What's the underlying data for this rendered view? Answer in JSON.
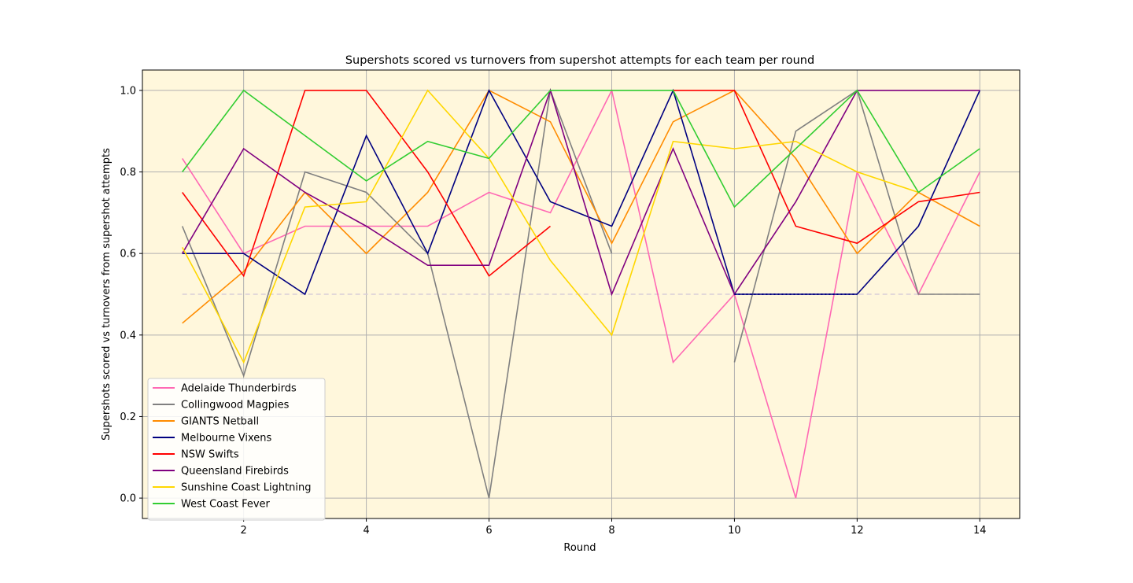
{
  "chart_data": {
    "type": "line",
    "title": "Supershots scored vs turnovers from supershot attempts for each team per round",
    "xlabel": "Round",
    "ylabel": "Supershots scored vs turnovers from supershot attempts",
    "xlim": [
      0.35,
      14.65
    ],
    "ylim": [
      -0.05,
      1.05
    ],
    "xticks": [
      2,
      4,
      6,
      8,
      10,
      12,
      14
    ],
    "yticks": [
      0.0,
      0.2,
      0.4,
      0.6,
      0.8,
      1.0
    ],
    "xtick_labels": [
      "2",
      "4",
      "6",
      "8",
      "10",
      "12",
      "14"
    ],
    "ytick_labels": [
      "0.0",
      "0.2",
      "0.4",
      "0.6",
      "0.8",
      "1.0"
    ],
    "grid": true,
    "background": "#fff7dc",
    "legend_position": "lower-left",
    "reference_line": {
      "y": 0.5,
      "x_range": [
        1,
        14
      ],
      "color": "#d8cdd8",
      "style": "dashed"
    },
    "series": [
      {
        "name": "Adelaide Thunderbirds",
        "color": "#ff69b4",
        "x": [
          1,
          2,
          3,
          4,
          5,
          6,
          7,
          8,
          9,
          10,
          11,
          12,
          13,
          14
        ],
        "y": [
          0.833,
          0.6,
          0.667,
          0.667,
          0.667,
          0.75,
          0.7,
          1.0,
          0.333,
          0.5,
          0.0,
          0.8,
          0.5,
          0.8
        ]
      },
      {
        "name": "Collingwood Magpies",
        "color": "#808080",
        "x": [
          1,
          2,
          3,
          4,
          5,
          6,
          7,
          8,
          null,
          10,
          11,
          12,
          13,
          14
        ],
        "y": [
          0.667,
          0.3,
          0.8,
          0.75,
          0.6,
          0.0,
          1.0,
          0.6,
          null,
          0.333,
          0.9,
          1.0,
          0.5,
          0.5
        ]
      },
      {
        "name": "GIANTS Netball",
        "color": "#ff8c00",
        "x": [
          1,
          2,
          3,
          4,
          5,
          6,
          7,
          8,
          9,
          10,
          11,
          12,
          13,
          14
        ],
        "y": [
          0.429,
          0.556,
          0.75,
          0.6,
          0.75,
          1.0,
          0.923,
          0.625,
          0.923,
          1.0,
          0.833,
          0.6,
          0.75,
          0.667
        ]
      },
      {
        "name": "Melbourne Vixens",
        "color": "#000080",
        "x": [
          1,
          2,
          3,
          4,
          5,
          6,
          7,
          8,
          9,
          10,
          11,
          12,
          13,
          14
        ],
        "y": [
          0.6,
          0.6,
          0.5,
          0.889,
          0.6,
          1.0,
          0.727,
          0.667,
          1.0,
          0.5,
          0.5,
          0.5,
          0.667,
          1.0
        ]
      },
      {
        "name": "NSW Swifts",
        "color": "#ff0000",
        "x": [
          1,
          2,
          3,
          4,
          5,
          6,
          7,
          null,
          9,
          10,
          11,
          12,
          13,
          14
        ],
        "y": [
          0.75,
          0.545,
          1.0,
          1.0,
          0.8,
          0.545,
          0.667,
          null,
          1.0,
          1.0,
          0.667,
          0.625,
          0.727,
          0.75
        ]
      },
      {
        "name": "Queensland Firebirds",
        "color": "#800080",
        "x": [
          1,
          2,
          3,
          4,
          5,
          6,
          7,
          8,
          9,
          10,
          11,
          12,
          13,
          14
        ],
        "y": [
          0.6,
          0.857,
          0.75,
          0.667,
          0.571,
          0.571,
          1.0,
          0.5,
          0.857,
          0.5,
          0.727,
          1.0,
          1.0,
          1.0
        ]
      },
      {
        "name": "Sunshine Coast Lightning",
        "color": "#ffd700",
        "x": [
          1,
          2,
          3,
          4,
          5,
          6,
          7,
          8,
          9,
          10,
          11,
          12,
          13,
          14
        ],
        "y": [
          0.615,
          0.333,
          0.714,
          0.727,
          1.0,
          0.833,
          0.583,
          0.4,
          0.875,
          0.857,
          0.875,
          0.8,
          0.75,
          null
        ]
      },
      {
        "name": "West Coast Fever",
        "color": "#32cd32",
        "x": [
          1,
          2,
          3,
          4,
          5,
          6,
          7,
          8,
          9,
          10,
          11,
          12,
          13,
          14
        ],
        "y": [
          0.8,
          1.0,
          0.889,
          0.778,
          0.875,
          0.833,
          1.0,
          1.0,
          1.0,
          0.714,
          0.857,
          1.0,
          0.75,
          0.857
        ]
      }
    ]
  }
}
